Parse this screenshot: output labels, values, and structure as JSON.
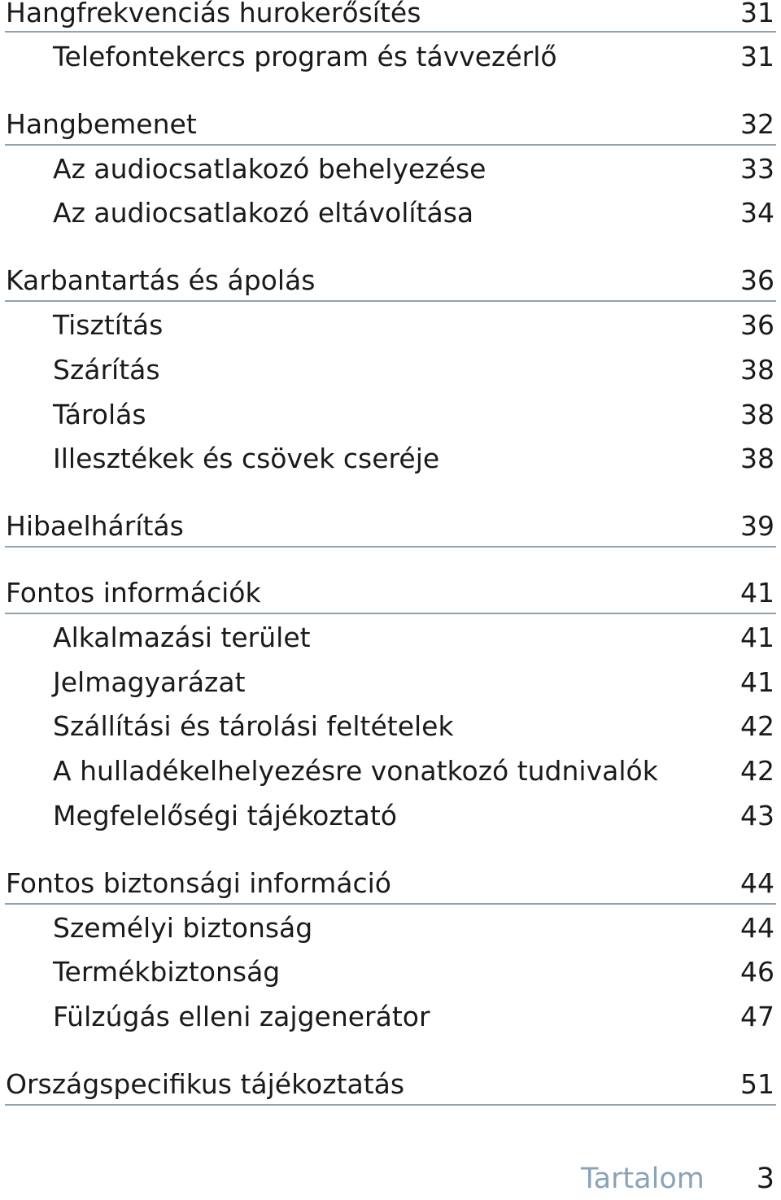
{
  "toc": {
    "entries": [
      {
        "label": "Hangfrekvenciás hurokerősítés",
        "page": "31",
        "level": 0
      },
      {
        "label": "Telefontekercs program és távvezérlő",
        "page": "31",
        "level": 1
      },
      {
        "label": "Hangbemenet",
        "page": "32",
        "level": 0
      },
      {
        "label": "Az audiocsatlakozó behelyezése",
        "page": "33",
        "level": 1
      },
      {
        "label": "Az audiocsatlakozó eltávolítása",
        "page": "34",
        "level": 1
      },
      {
        "label": "Karbantartás és ápolás",
        "page": "36",
        "level": 0
      },
      {
        "label": "Tisztítás",
        "page": "36",
        "level": 1
      },
      {
        "label": "Szárítás",
        "page": "38",
        "level": 1
      },
      {
        "label": "Tárolás",
        "page": "38",
        "level": 1
      },
      {
        "label": "Illesztékek és csövek cseréje",
        "page": "38",
        "level": 1
      },
      {
        "label": "Hibaelhárítás",
        "page": "39",
        "level": 0
      },
      {
        "label": "Fontos információk",
        "page": "41",
        "level": 0
      },
      {
        "label": "Alkalmazási terület",
        "page": "41",
        "level": 1
      },
      {
        "label": "Jelmagyarázat",
        "page": "41",
        "level": 1
      },
      {
        "label": "Szállítási és tárolási feltételek",
        "page": "42",
        "level": 1
      },
      {
        "label": "A hulladékelhelyezésre vonatkozó tudnivalók",
        "page": "42",
        "level": 1
      },
      {
        "label": "Megfelelőségi tájékoztató",
        "page": "43",
        "level": 1
      },
      {
        "label": "Fontos biztonsági információ",
        "page": "44",
        "level": 0
      },
      {
        "label": "Személyi biztonság",
        "page": "44",
        "level": 1
      },
      {
        "label": "Termékbiztonság",
        "page": "46",
        "level": 1
      },
      {
        "label": "Fülzúgás elleni zajgenerátor",
        "page": "47",
        "level": 1
      },
      {
        "label": "Országspecifikus tájékoztatás",
        "page": "51",
        "level": 0
      }
    ]
  },
  "footer": {
    "section": "Tartalom",
    "page_number": "3"
  },
  "colors": {
    "text": "#1a1a1a",
    "rule": "#8ea2b2",
    "footer_section": "#8ba3b7"
  }
}
